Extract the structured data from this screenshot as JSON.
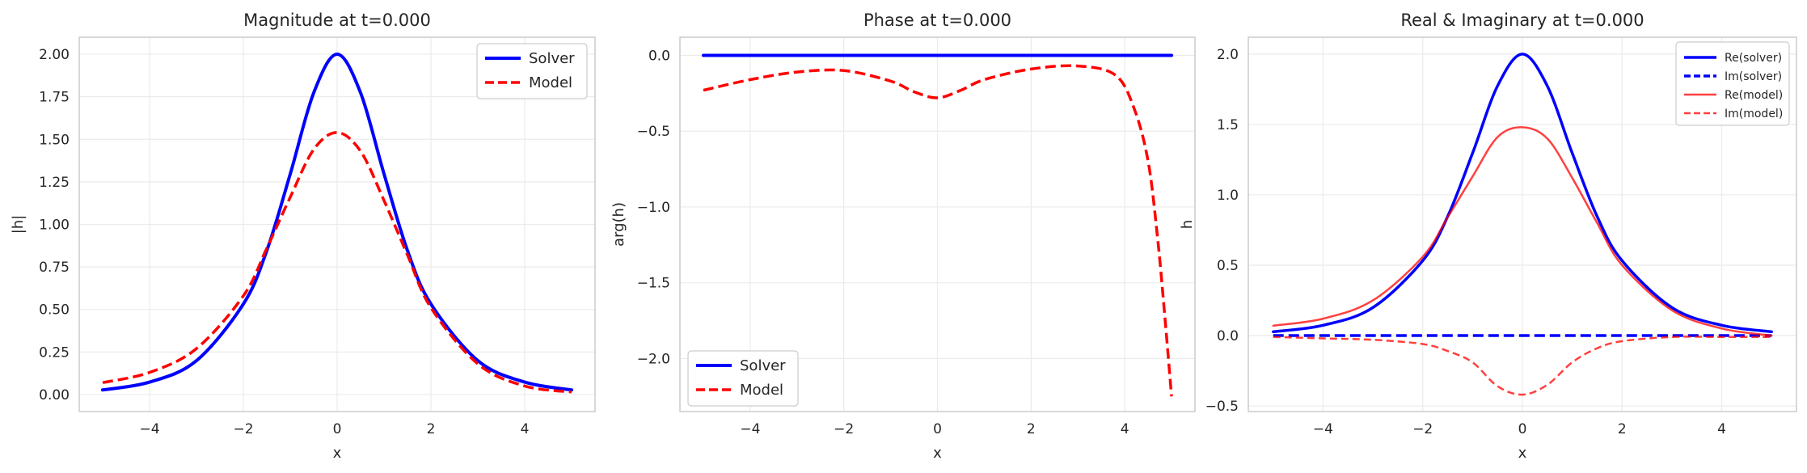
{
  "chart_data": [
    {
      "type": "line",
      "title": "Magnitude at t=0.000",
      "xlabel": "x",
      "ylabel": "|h|",
      "xlim": [
        -5.5,
        5.5
      ],
      "ylim": [
        -0.1,
        2.1
      ],
      "xticks": [
        -4,
        -2,
        0,
        2,
        4
      ],
      "xtick_labels": [
        "−4",
        "−2",
        "0",
        "2",
        "4"
      ],
      "yticks": [
        0.0,
        0.25,
        0.5,
        0.75,
        1.0,
        1.25,
        1.5,
        1.75,
        2.0
      ],
      "ytick_labels": [
        "0.00",
        "0.25",
        "0.50",
        "0.75",
        "1.00",
        "1.25",
        "1.50",
        "1.75",
        "2.00"
      ],
      "grid": true,
      "legend": "top-right",
      "x": [
        -5,
        -4,
        -3,
        -2,
        -1.5,
        -1,
        -0.5,
        0,
        0.5,
        1,
        1.5,
        2,
        3,
        4,
        5
      ],
      "series": [
        {
          "name": "Solver",
          "color": "#0000ff",
          "style": "solid",
          "width": 4,
          "values": [
            0.027,
            0.073,
            0.199,
            0.532,
            0.846,
            1.296,
            1.773,
            2.0,
            1.773,
            1.296,
            0.846,
            0.532,
            0.199,
            0.073,
            0.027
          ]
        },
        {
          "name": "Model",
          "color": "#ff0000",
          "style": "dashed",
          "width": 3.5,
          "values": [
            0.07,
            0.13,
            0.27,
            0.58,
            0.86,
            1.16,
            1.44,
            1.54,
            1.43,
            1.14,
            0.82,
            0.51,
            0.18,
            0.05,
            0.015
          ]
        }
      ]
    },
    {
      "type": "line",
      "title": "Phase at t=0.000",
      "xlabel": "x",
      "ylabel": "arg(h)",
      "xlim": [
        -5.5,
        5.5
      ],
      "ylim": [
        -2.35,
        0.12
      ],
      "xticks": [
        -4,
        -2,
        0,
        2,
        4
      ],
      "xtick_labels": [
        "−4",
        "−2",
        "0",
        "2",
        "4"
      ],
      "yticks": [
        0.0,
        -0.5,
        -1.0,
        -1.5,
        -2.0
      ],
      "ytick_labels": [
        "0.0",
        "−0.5",
        "−1.0",
        "−1.5",
        "−2.0"
      ],
      "grid": true,
      "legend": "bottom-left",
      "series": [
        {
          "name": "Solver",
          "color": "#0000ff",
          "style": "solid",
          "width": 4,
          "x": [
            -5,
            5
          ],
          "values": [
            0.0,
            0.0
          ]
        },
        {
          "name": "Model",
          "color": "#ff0000",
          "style": "dashed",
          "width": 3.5,
          "x": [
            -5,
            -4,
            -3,
            -2,
            -1,
            -0.5,
            0,
            0.5,
            1,
            2,
            3,
            3.8,
            4.2,
            4.5,
            4.7,
            4.85,
            5
          ],
          "values": [
            -0.23,
            -0.16,
            -0.11,
            -0.1,
            -0.17,
            -0.24,
            -0.28,
            -0.23,
            -0.16,
            -0.09,
            -0.07,
            -0.13,
            -0.35,
            -0.7,
            -1.2,
            -1.7,
            -2.25
          ]
        }
      ]
    },
    {
      "type": "line",
      "title": "Real & Imaginary at t=0.000",
      "xlabel": "x",
      "ylabel": "h",
      "xlim": [
        -5.5,
        5.5
      ],
      "ylim": [
        -0.54,
        2.12
      ],
      "xticks": [
        -4,
        -2,
        0,
        2,
        4
      ],
      "xtick_labels": [
        "−4",
        "−2",
        "0",
        "2",
        "4"
      ],
      "yticks": [
        -0.5,
        0.0,
        0.5,
        1.0,
        1.5,
        2.0
      ],
      "ytick_labels": [
        "−0.5",
        "0.0",
        "0.5",
        "1.0",
        "1.5",
        "2.0"
      ],
      "grid": true,
      "legend": "top-right",
      "x": [
        -5,
        -4,
        -3,
        -2,
        -1.5,
        -1,
        -0.5,
        0,
        0.5,
        1,
        1.5,
        2,
        3,
        4,
        5
      ],
      "series": [
        {
          "name": "Re(solver)",
          "color": "#0000ff",
          "style": "solid",
          "width": 3.5,
          "opacity": 1,
          "values": [
            0.027,
            0.073,
            0.199,
            0.532,
            0.846,
            1.296,
            1.773,
            2.0,
            1.773,
            1.296,
            0.846,
            0.532,
            0.199,
            0.073,
            0.027
          ]
        },
        {
          "name": "Im(solver)",
          "color": "#0000ff",
          "style": "dashed",
          "width": 3.5,
          "opacity": 1,
          "values": [
            0,
            0,
            0,
            0,
            0,
            0,
            0,
            0,
            0,
            0,
            0,
            0,
            0,
            0,
            0
          ]
        },
        {
          "name": "Re(model)",
          "color": "#ff0000",
          "style": "solid",
          "width": 2.5,
          "opacity": 0.75,
          "values": [
            0.07,
            0.12,
            0.25,
            0.56,
            0.84,
            1.13,
            1.41,
            1.48,
            1.4,
            1.12,
            0.8,
            0.5,
            0.18,
            0.05,
            0.0
          ]
        },
        {
          "name": "Im(model)",
          "color": "#ff0000",
          "style": "dashed",
          "width": 2.5,
          "opacity": 0.75,
          "values": [
            -0.01,
            -0.02,
            -0.03,
            -0.06,
            -0.11,
            -0.19,
            -0.36,
            -0.42,
            -0.35,
            -0.19,
            -0.09,
            -0.04,
            -0.01,
            -0.01,
            -0.01
          ]
        }
      ]
    }
  ]
}
